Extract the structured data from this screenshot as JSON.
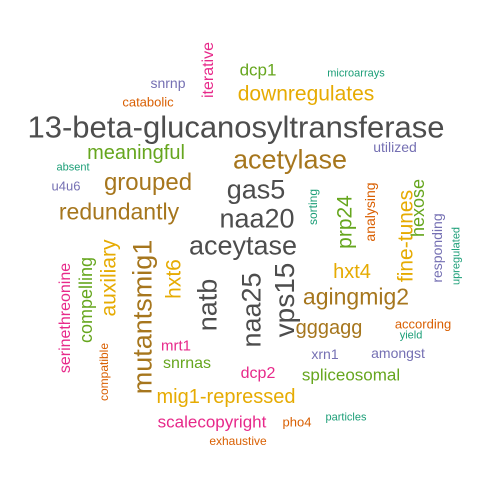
{
  "word_cloud": {
    "palette": {
      "dark_gray": "#4d4d4d",
      "brown": "#a6761d",
      "gold": "#e6ab02",
      "green": "#66a61e",
      "magenta": "#e7298a",
      "purple": "#7570b3",
      "orange": "#d95f02",
      "teal": "#1b9e77"
    },
    "words": [
      {
        "key": "13-beta-glucanosyltransferase",
        "text": "13-beta-glucanosyltransferase",
        "color": "#4d4d4d",
        "vertical": false
      },
      {
        "key": "acetylase",
        "text": "acetylase",
        "color": "#a6761d",
        "vertical": false
      },
      {
        "key": "gas5",
        "text": "gas5",
        "color": "#4d4d4d",
        "vertical": false
      },
      {
        "key": "naa20",
        "text": "naa20",
        "color": "#4d4d4d",
        "vertical": false
      },
      {
        "key": "aceytase",
        "text": "aceytase",
        "color": "#4d4d4d",
        "vertical": false
      },
      {
        "key": "grouped",
        "text": "grouped",
        "color": "#a6761d",
        "vertical": false
      },
      {
        "key": "redundantly",
        "text": "redundantly",
        "color": "#a6761d",
        "vertical": false
      },
      {
        "key": "agingmig2",
        "text": "agingmig2",
        "color": "#a6761d",
        "vertical": false
      },
      {
        "key": "downregulates",
        "text": "downregulates",
        "color": "#e6ab02",
        "vertical": false
      },
      {
        "key": "meaningful",
        "text": "meaningful",
        "color": "#66a61e",
        "vertical": false
      },
      {
        "key": "gggagg",
        "text": "gggagg",
        "color": "#a6761d",
        "vertical": false
      },
      {
        "key": "mig1-repressed",
        "text": "mig1-repressed",
        "color": "#e6ab02",
        "vertical": false
      },
      {
        "key": "hxt4",
        "text": "hxt4",
        "color": "#e6ab02",
        "vertical": false
      },
      {
        "key": "dcp1",
        "text": "dcp1",
        "color": "#66a61e",
        "vertical": false
      },
      {
        "key": "spliceosomal",
        "text": "spliceosomal",
        "color": "#66a61e",
        "vertical": false
      },
      {
        "key": "scalecopyright",
        "text": "scalecopyright",
        "color": "#e7298a",
        "vertical": false
      },
      {
        "key": "snrnas",
        "text": "snrnas",
        "color": "#66a61e",
        "vertical": false
      },
      {
        "key": "dcp2",
        "text": "dcp2",
        "color": "#e7298a",
        "vertical": false
      },
      {
        "key": "mrt1",
        "text": "mrt1",
        "color": "#e7298a",
        "vertical": false
      },
      {
        "key": "snrnp",
        "text": "snrnp",
        "color": "#7570b3",
        "vertical": false
      },
      {
        "key": "catabolic",
        "text": "catabolic",
        "color": "#d95f02",
        "vertical": false
      },
      {
        "key": "utilized",
        "text": "utilized",
        "color": "#7570b3",
        "vertical": false
      },
      {
        "key": "amongst",
        "text": "amongst",
        "color": "#7570b3",
        "vertical": false
      },
      {
        "key": "xrn1",
        "text": "xrn1",
        "color": "#7570b3",
        "vertical": false
      },
      {
        "key": "according",
        "text": "according",
        "color": "#d95f02",
        "vertical": false
      },
      {
        "key": "u4u6",
        "text": "u4u6",
        "color": "#7570b3",
        "vertical": false
      },
      {
        "key": "pho4",
        "text": "pho4",
        "color": "#d95f02",
        "vertical": false
      },
      {
        "key": "exhaustive",
        "text": "exhaustive",
        "color": "#d95f02",
        "vertical": false
      },
      {
        "key": "microarrays",
        "text": "microarrays",
        "color": "#1b9e77",
        "vertical": false
      },
      {
        "key": "absent",
        "text": "absent",
        "color": "#1b9e77",
        "vertical": false
      },
      {
        "key": "yield",
        "text": "yield",
        "color": "#1b9e77",
        "vertical": false
      },
      {
        "key": "particles",
        "text": "particles",
        "color": "#1b9e77",
        "vertical": false
      },
      {
        "key": "vps15",
        "text": "vps15",
        "color": "#4d4d4d",
        "vertical": true
      },
      {
        "key": "naa25",
        "text": "naa25",
        "color": "#4d4d4d",
        "vertical": true
      },
      {
        "key": "natb",
        "text": "natb",
        "color": "#4d4d4d",
        "vertical": true
      },
      {
        "key": "mutantsmig1",
        "text": "mutantsmig1",
        "color": "#a6761d",
        "vertical": true
      },
      {
        "key": "auxiliary",
        "text": "auxiliary",
        "color": "#e6ab02",
        "vertical": true
      },
      {
        "key": "hxt6",
        "text": "hxt6",
        "color": "#e6ab02",
        "vertical": true
      },
      {
        "key": "fine-tunes",
        "text": "fine-tunes",
        "color": "#e6ab02",
        "vertical": true
      },
      {
        "key": "prp24",
        "text": "prp24",
        "color": "#66a61e",
        "vertical": true
      },
      {
        "key": "hexose",
        "text": "hexose",
        "color": "#66a61e",
        "vertical": true
      },
      {
        "key": "compelling",
        "text": "compelling",
        "color": "#66a61e",
        "vertical": true
      },
      {
        "key": "serinethreonine",
        "text": "serinethreonine",
        "color": "#e7298a",
        "vertical": true
      },
      {
        "key": "iterative",
        "text": "iterative",
        "color": "#e7298a",
        "vertical": true
      },
      {
        "key": "analysing",
        "text": "analysing",
        "color": "#d95f02",
        "vertical": true
      },
      {
        "key": "compatible",
        "text": "compatible",
        "color": "#d95f02",
        "vertical": true
      },
      {
        "key": "responding",
        "text": "responding",
        "color": "#7570b3",
        "vertical": true
      },
      {
        "key": "sorting",
        "text": "sorting",
        "color": "#1b9e77",
        "vertical": true
      },
      {
        "key": "upregulated",
        "text": "upregulated",
        "color": "#1b9e77",
        "vertical": true
      }
    ]
  }
}
